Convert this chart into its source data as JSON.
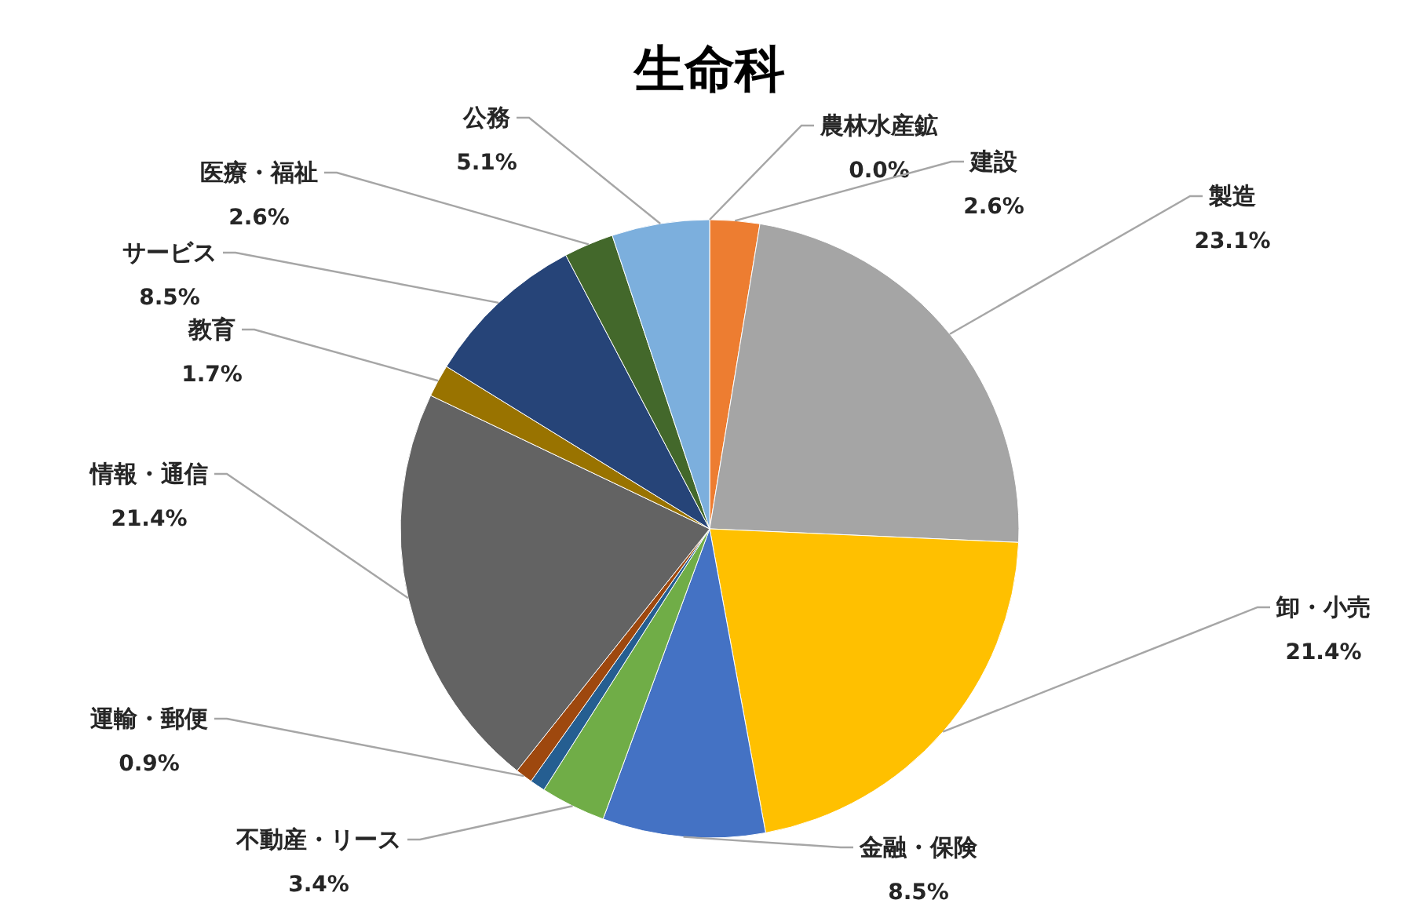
{
  "chart_data": {
    "type": "pie",
    "title": "生命科",
    "categories": [
      "農林水産鉱",
      "建設",
      "製造",
      "卸・小売",
      "金融・保険",
      "不動産・リース",
      null,
      "運輸・郵便",
      "情報・通信",
      "教育",
      "サービス",
      "医療・福祉",
      "公務"
    ],
    "values": [
      0.0,
      2.6,
      23.1,
      21.4,
      8.5,
      3.4,
      0.8,
      0.9,
      21.4,
      1.7,
      8.5,
      2.6,
      5.1
    ],
    "value_labels": [
      "0.0%",
      "2.6%",
      "23.1%",
      "21.4%",
      "8.5%",
      "3.4%",
      null,
      "0.9%",
      "21.4%",
      "1.7%",
      "8.5%",
      "2.6%",
      "5.1%"
    ],
    "colors": [
      "#5b9bd5",
      "#ed7d31",
      "#a5a5a5",
      "#ffc000",
      "#4472c4",
      "#70ad47",
      "#255e91",
      "#9e480e",
      "#636363",
      "#997300",
      "#264478",
      "#43682b",
      "#7cafdd"
    ]
  }
}
